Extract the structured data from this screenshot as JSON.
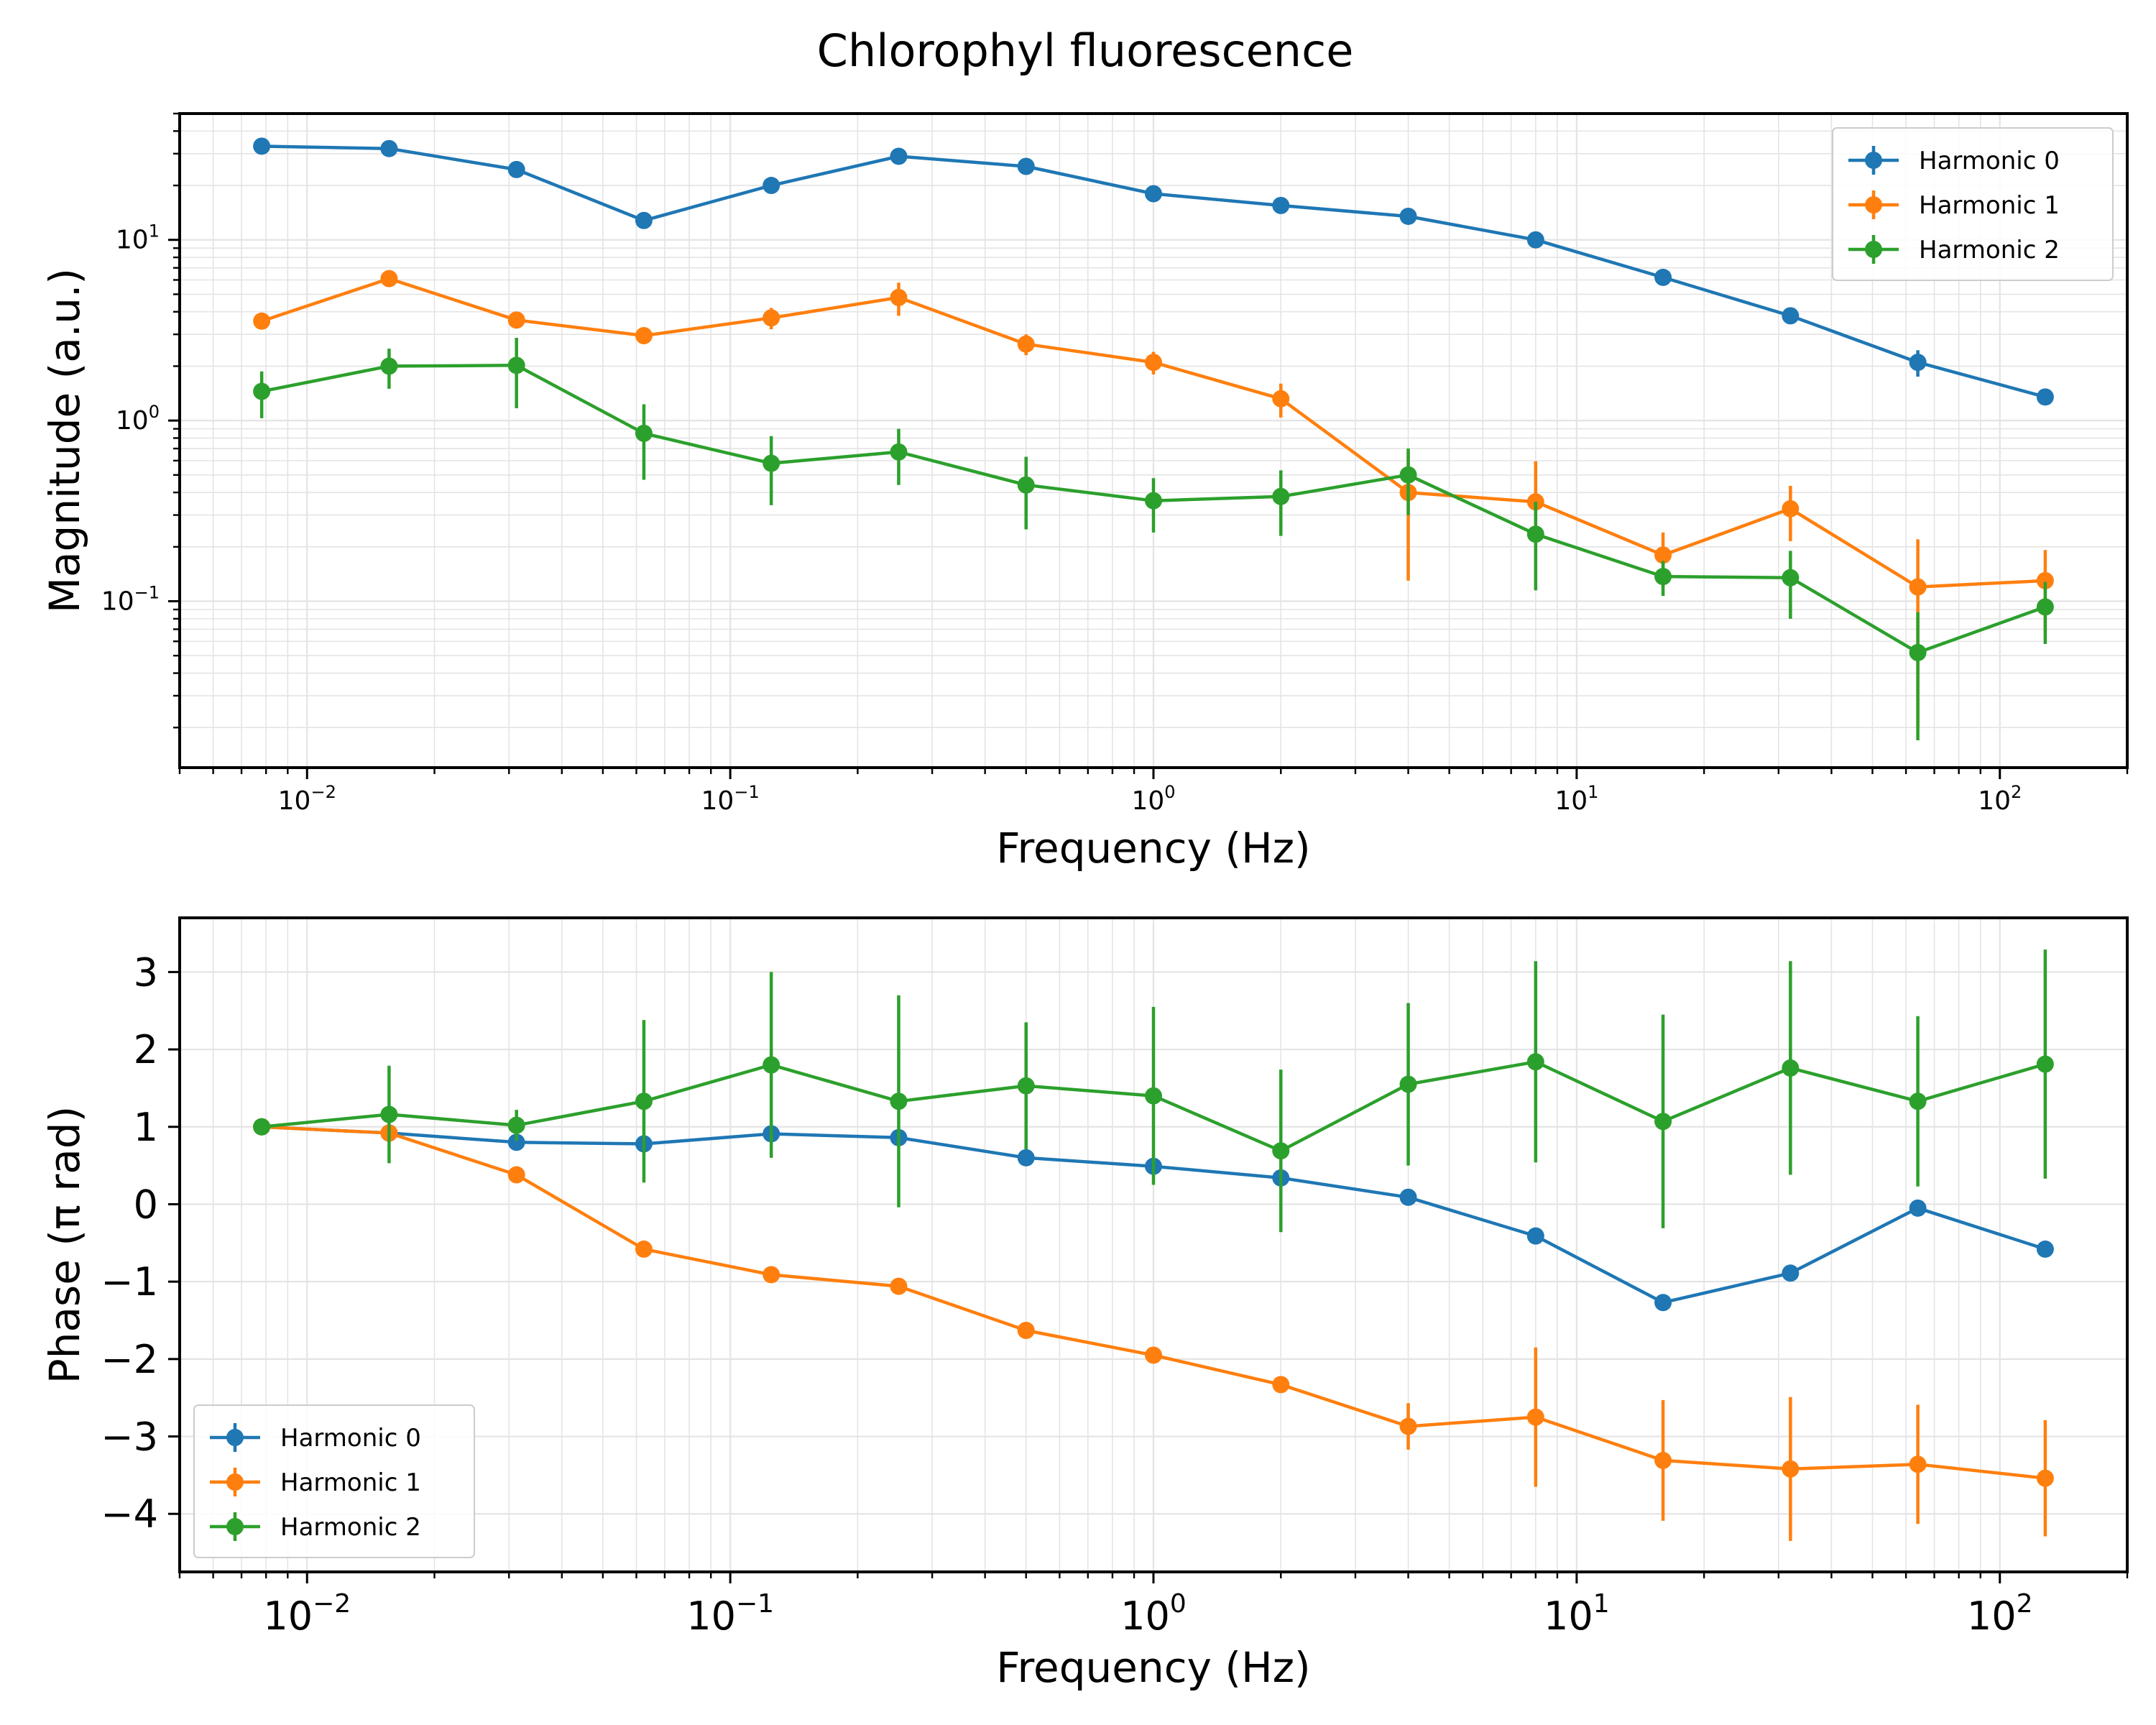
{
  "title": "Chlorophyl fluorescence",
  "colors": {
    "harmonic0": "#1f77b4",
    "harmonic1": "#ff7f0e",
    "harmonic2": "#2ca02c",
    "grid": "#d9d9d9"
  },
  "chart_data": [
    {
      "type": "line",
      "error_bars": true,
      "xlabel": "Frequency (Hz)",
      "ylabel": "Magnitude (a.u.)",
      "xscale": "log",
      "yscale": "log",
      "xlim": [
        0.005,
        200
      ],
      "ylim": [
        0.012,
        50
      ],
      "grid": true,
      "legend_position": "top-right",
      "x_ticks": [
        {
          "base": "10",
          "exp": "−2",
          "value": 0.01
        },
        {
          "base": "10",
          "exp": "−1",
          "value": 0.1
        },
        {
          "base": "10",
          "exp": "0",
          "value": 1
        },
        {
          "base": "10",
          "exp": "1",
          "value": 10
        },
        {
          "base": "10",
          "exp": "2",
          "value": 100
        }
      ],
      "y_ticks": [
        {
          "base": "10",
          "exp": "−1",
          "value": 0.1
        },
        {
          "base": "10",
          "exp": "0",
          "value": 1
        },
        {
          "base": "10",
          "exp": "1",
          "value": 10
        }
      ],
      "x": [
        0.0078125,
        0.015625,
        0.03125,
        0.0625,
        0.125,
        0.25,
        0.5,
        1,
        2,
        4,
        8,
        16,
        32,
        64,
        128
      ],
      "series": [
        {
          "name": "Harmonic 0",
          "color": "#1f77b4",
          "values": [
            33,
            32,
            24.5,
            12.8,
            20,
            29,
            25.5,
            18,
            15.5,
            13.5,
            10,
            6.2,
            3.8,
            2.1,
            1.35
          ],
          "errors": [
            0.8,
            0.8,
            0.8,
            0.5,
            0.7,
            0.8,
            0.8,
            0.6,
            0.5,
            0.5,
            0.4,
            0.3,
            0.25,
            0.35,
            0.1
          ]
        },
        {
          "name": "Harmonic 1",
          "color": "#ff7f0e",
          "values": [
            3.55,
            6.1,
            3.6,
            2.95,
            3.7,
            4.8,
            2.65,
            2.1,
            1.32,
            0.4,
            0.355,
            0.18,
            0.325,
            0.12,
            0.13
          ],
          "errors": [
            0.2,
            0.3,
            0.2,
            0.15,
            0.5,
            1.0,
            0.35,
            0.3,
            0.28,
            0.27,
            0.24,
            0.06,
            0.11,
            0.1,
            0.062
          ]
        },
        {
          "name": "Harmonic 2",
          "color": "#2ca02c",
          "values": [
            1.45,
            2.0,
            2.02,
            0.85,
            0.58,
            0.67,
            0.44,
            0.36,
            0.38,
            0.5,
            0.235,
            0.137,
            0.135,
            0.052,
            0.093
          ],
          "errors": [
            0.42,
            0.5,
            0.85,
            0.38,
            0.24,
            0.23,
            0.19,
            0.12,
            0.15,
            0.2,
            0.12,
            0.03,
            0.055,
            0.035,
            0.035
          ]
        }
      ]
    },
    {
      "type": "line",
      "error_bars": true,
      "xlabel": "Frequency (Hz)",
      "ylabel": "Phase (π rad)",
      "xscale": "log",
      "yscale": "linear",
      "xlim": [
        0.005,
        200
      ],
      "ylim": [
        -4.75,
        3.7
      ],
      "grid": true,
      "legend_position": "bottom-left",
      "x_ticks": [
        {
          "base": "10",
          "exp": "−2",
          "value": 0.01
        },
        {
          "base": "10",
          "exp": "−1",
          "value": 0.1
        },
        {
          "base": "10",
          "exp": "0",
          "value": 1
        },
        {
          "base": "10",
          "exp": "1",
          "value": 10
        },
        {
          "base": "10",
          "exp": "2",
          "value": 100
        }
      ],
      "y_ticks": [
        {
          "label": "3",
          "value": 3
        },
        {
          "label": "2",
          "value": 2
        },
        {
          "label": "1",
          "value": 1
        },
        {
          "label": "0",
          "value": 0
        },
        {
          "label": "−1",
          "value": -1
        },
        {
          "label": "−2",
          "value": -2
        },
        {
          "label": "−3",
          "value": -3
        },
        {
          "label": "−4",
          "value": -4
        }
      ],
      "x": [
        0.0078125,
        0.015625,
        0.03125,
        0.0625,
        0.125,
        0.25,
        0.5,
        1,
        2,
        4,
        8,
        16,
        32,
        64,
        128
      ],
      "series": [
        {
          "name": "Harmonic 0",
          "color": "#1f77b4",
          "values": [
            1.0,
            0.92,
            0.8,
            0.78,
            0.91,
            0.86,
            0.6,
            0.49,
            0.34,
            0.09,
            -0.41,
            -1.27,
            -0.89,
            -0.05,
            -0.58
          ],
          "errors": [
            0.03,
            0.05,
            0.05,
            0.05,
            0.05,
            0.05,
            0.05,
            0.05,
            0.05,
            0.05,
            0.05,
            0.05,
            0.05,
            0.05,
            0.05
          ]
        },
        {
          "name": "Harmonic 1",
          "color": "#ff7f0e",
          "values": [
            1.0,
            0.92,
            0.38,
            -0.58,
            -0.91,
            -1.06,
            -1.63,
            -1.95,
            -2.33,
            -2.87,
            -2.75,
            -3.31,
            -3.42,
            -3.36,
            -3.54
          ],
          "errors": [
            0.03,
            0.05,
            0.05,
            0.05,
            0.05,
            0.05,
            0.05,
            0.08,
            0.05,
            0.3,
            0.9,
            0.78,
            0.93,
            0.77,
            0.75
          ]
        },
        {
          "name": "Harmonic 2",
          "color": "#2ca02c",
          "values": [
            1.0,
            1.16,
            1.02,
            1.33,
            1.8,
            1.33,
            1.53,
            1.4,
            0.69,
            1.55,
            1.84,
            1.07,
            1.76,
            1.33,
            1.81
          ],
          "errors": [
            0.03,
            0.63,
            0.2,
            1.05,
            1.2,
            1.37,
            0.82,
            1.15,
            1.05,
            1.05,
            1.3,
            1.38,
            1.38,
            1.1,
            1.48
          ]
        }
      ]
    }
  ]
}
